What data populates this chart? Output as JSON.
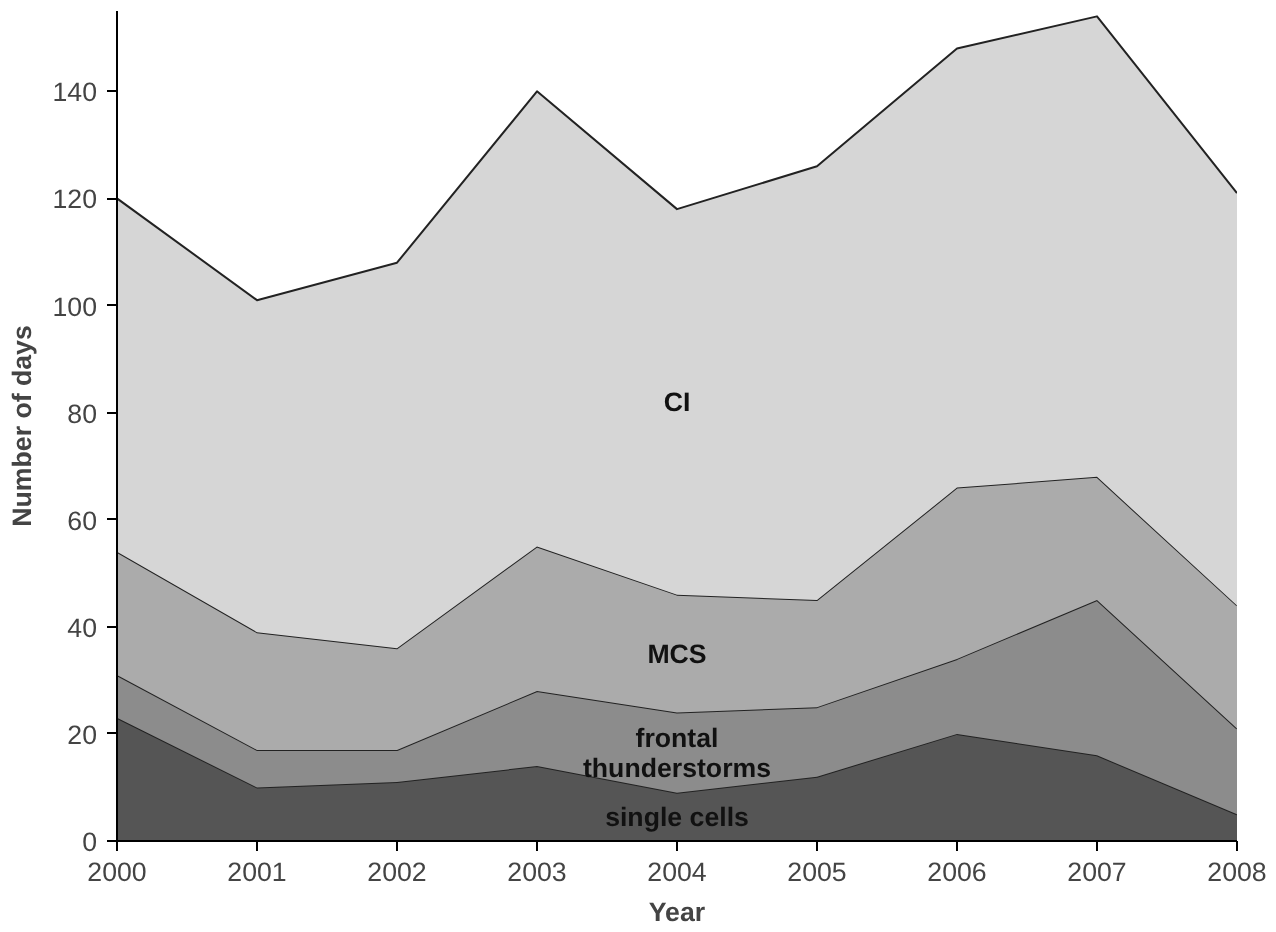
{
  "chart_data": {
    "type": "area",
    "stacked": true,
    "xlabel": "Year",
    "ylabel": "Number of days",
    "x": [
      2000,
      2001,
      2002,
      2003,
      2004,
      2005,
      2006,
      2007,
      2008
    ],
    "xlim": [
      2000,
      2008
    ],
    "xticks": [
      2000,
      2001,
      2002,
      2003,
      2004,
      2005,
      2006,
      2007,
      2008
    ],
    "ylim": [
      0,
      155
    ],
    "yticks": [
      0,
      20,
      40,
      60,
      80,
      100,
      120,
      140
    ],
    "grid": false,
    "series": [
      {
        "name": "single cells",
        "color": "#555555",
        "values": [
          23,
          10,
          11,
          14,
          9,
          12,
          20,
          16,
          5
        ]
      },
      {
        "name": "frontal thunderstorms",
        "color": "#8c8c8c",
        "values": [
          8,
          7,
          6,
          14,
          15,
          13,
          14,
          29,
          16
        ]
      },
      {
        "name": "MCS",
        "color": "#ababab",
        "values": [
          23,
          22,
          19,
          27,
          22,
          20,
          32,
          23,
          23
        ]
      },
      {
        "name": "CI",
        "color": "#d6d6d6",
        "values": [
          66,
          62,
          72,
          85,
          72,
          81,
          82,
          86,
          77
        ]
      }
    ]
  }
}
